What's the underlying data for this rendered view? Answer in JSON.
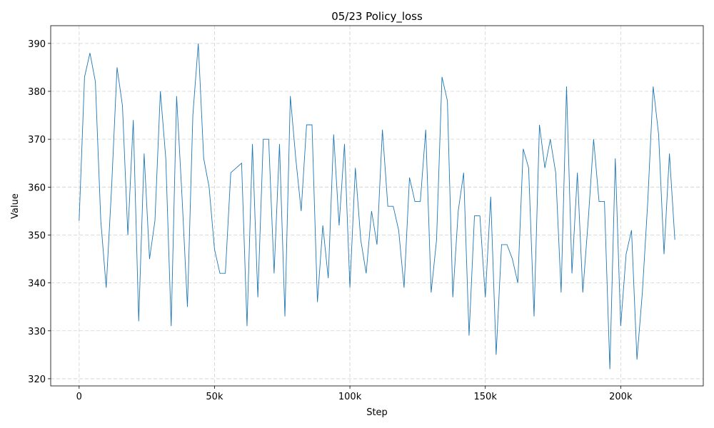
{
  "chart_data": {
    "type": "line",
    "title": "05/23  Policy_loss",
    "x_label": "Step",
    "y_label": "Value",
    "x": [
      0,
      2000,
      4000,
      6000,
      8000,
      10000,
      12000,
      14000,
      16000,
      18000,
      20000,
      22000,
      24000,
      26000,
      28000,
      30000,
      32000,
      34000,
      36000,
      38000,
      40000,
      42000,
      44000,
      46000,
      48000,
      50000,
      52000,
      54000,
      56000,
      58000,
      60000,
      62000,
      64000,
      66000,
      68000,
      70000,
      72000,
      74000,
      76000,
      78000,
      80000,
      82000,
      84000,
      86000,
      88000,
      90000,
      92000,
      94000,
      96000,
      98000,
      100000,
      102000,
      104000,
      106000,
      108000,
      110000,
      112000,
      114000,
      116000,
      118000,
      120000,
      122000,
      124000,
      126000,
      128000,
      130000,
      132000,
      134000,
      136000,
      138000,
      140000,
      142000,
      144000,
      146000,
      148000,
      150000,
      152000,
      154000,
      156000,
      158000,
      160000,
      162000,
      164000,
      166000,
      168000,
      170000,
      172000,
      174000,
      176000,
      178000,
      180000,
      182000,
      184000,
      186000,
      188000,
      190000,
      192000,
      194000,
      196000,
      198000,
      200000,
      202000,
      204000,
      206000,
      208000,
      210000,
      212000,
      214000,
      216000,
      218000,
      220000
    ],
    "series": [
      {
        "name": "Policy_loss",
        "color": "#1f77b4",
        "values": [
          353,
          383,
          388,
          382,
          353,
          339,
          360,
          385,
          377,
          350,
          374,
          332,
          367,
          345,
          353,
          380,
          366,
          331,
          379,
          358,
          335,
          375,
          390,
          366,
          360,
          347,
          342,
          342,
          363,
          364,
          365,
          331,
          369,
          337,
          370,
          370,
          342,
          369,
          333,
          379,
          366,
          355,
          373,
          373,
          336,
          352,
          341,
          371,
          352,
          369,
          339,
          364,
          349,
          342,
          355,
          348,
          372,
          356,
          356,
          351,
          339,
          362,
          357,
          357,
          372,
          338,
          349,
          383,
          378,
          337,
          355,
          363,
          329,
          354,
          354,
          337,
          358,
          325,
          348,
          348,
          345,
          340,
          368,
          364,
          333,
          373,
          364,
          370,
          363,
          338,
          381,
          342,
          363,
          338,
          353,
          370,
          357,
          357,
          322,
          366,
          331,
          346,
          351,
          324,
          338,
          357,
          381,
          371,
          346,
          367,
          349
        ]
      }
    ],
    "xlim": [
      -10500,
      230500
    ],
    "ylim": [
      318.5,
      393.7
    ],
    "xticks": [
      0,
      {
        "value": 50000,
        "label": "50k"
      },
      {
        "value": 100000,
        "label": "100k"
      },
      {
        "value": 150000,
        "label": "150k"
      },
      {
        "value": 200000,
        "label": "200k"
      }
    ],
    "yticks": [
      320,
      330,
      340,
      350,
      360,
      370,
      380,
      390
    ],
    "grid": true
  }
}
